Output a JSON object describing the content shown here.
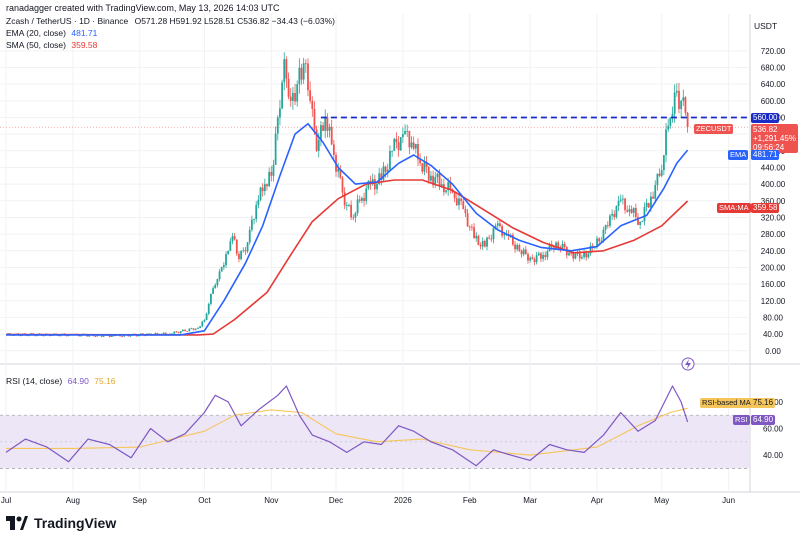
{
  "header": {
    "credit": "ranadagger created with TradingView.com, May 13, 2026 14:03 UTC",
    "currency": "USDT"
  },
  "legend": {
    "symbol": "Zcash / TetherUS · 1D · Binance",
    "ohlc": "O571.28 H591.92 L528.51 C536.82 −34.43 (−6.03%)",
    "ema_label": "EMA (20, close)",
    "ema_value": "481.71",
    "sma_label": "SMA (50, close)",
    "sma_value": "359.58",
    "rsi_label": "RSI (14, close)",
    "rsi_value": "64.90",
    "rsi_ma_value": "75.16"
  },
  "tags": {
    "resistance": "560.00",
    "symbol": "ZECUSDT",
    "price": "536.82",
    "change": "+1,291.45%",
    "countdown": "09:56:24",
    "ema_name": "EMA",
    "ema": "481.71",
    "sma_name": "SMA:MA",
    "sma": "359.58",
    "rsi_ma_name": "RSI-based MA",
    "rsi_ma": "75.16",
    "rsi_name": "RSI",
    "rsi": "64.90"
  },
  "brand": {
    "name": "TradingView"
  },
  "colors": {
    "up": "#26a69a",
    "down": "#ef5350",
    "ema": "#2962ff",
    "sma": "#e53935",
    "resistance": "#1a2cc4",
    "rsi": "#7e57c2",
    "rsi_ma": "#f6c55a",
    "rsi_band": "#ece6f7"
  },
  "chart_data": [
    {
      "type": "candlestick",
      "title": "Zcash / TetherUS · 1D · Binance",
      "x_ticks": [
        "Jul",
        "Aug",
        "Sep",
        "Oct",
        "Nov",
        "Dec",
        "2026",
        "Feb",
        "Mar",
        "Apr",
        "May",
        "Jun"
      ],
      "y_ticks": [
        0,
        40,
        80,
        120,
        160,
        200,
        240,
        280,
        320,
        360,
        400,
        440,
        480,
        520,
        560,
        600,
        640,
        680,
        720
      ],
      "ylim": [
        -15,
        770
      ],
      "grid": true,
      "resistance_level": 560,
      "close_series": [
        {
          "date": "2025-07-01",
          "close": 39
        },
        {
          "date": "2025-08-01",
          "close": 38
        },
        {
          "date": "2025-08-20",
          "close": 36
        },
        {
          "date": "2025-09-15",
          "close": 41
        },
        {
          "date": "2025-09-28",
          "close": 55
        },
        {
          "date": "2025-10-01",
          "close": 74
        },
        {
          "date": "2025-10-05",
          "close": 150
        },
        {
          "date": "2025-10-08",
          "close": 190
        },
        {
          "date": "2025-10-12",
          "close": 240
        },
        {
          "date": "2025-10-14",
          "close": 275
        },
        {
          "date": "2025-10-17",
          "close": 220
        },
        {
          "date": "2025-10-21",
          "close": 260
        },
        {
          "date": "2025-10-25",
          "close": 350
        },
        {
          "date": "2025-10-29",
          "close": 400
        },
        {
          "date": "2025-11-01",
          "close": 420
        },
        {
          "date": "2025-11-04",
          "close": 560
        },
        {
          "date": "2025-11-07",
          "close": 700
        },
        {
          "date": "2025-11-10",
          "close": 600
        },
        {
          "date": "2025-11-13",
          "close": 640
        },
        {
          "date": "2025-11-16",
          "close": 690
        },
        {
          "date": "2025-11-19",
          "close": 600
        },
        {
          "date": "2025-11-22",
          "close": 480
        },
        {
          "date": "2025-11-26",
          "close": 560
        },
        {
          "date": "2025-11-30",
          "close": 470
        },
        {
          "date": "2025-12-04",
          "close": 380
        },
        {
          "date": "2025-12-08",
          "close": 320
        },
        {
          "date": "2025-12-12",
          "close": 360
        },
        {
          "date": "2025-12-17",
          "close": 400
        },
        {
          "date": "2025-12-22",
          "close": 410
        },
        {
          "date": "2025-12-27",
          "close": 480
        },
        {
          "date": "2026-01-01",
          "close": 520
        },
        {
          "date": "2026-01-05",
          "close": 500
        },
        {
          "date": "2026-01-09",
          "close": 450
        },
        {
          "date": "2026-01-14",
          "close": 420
        },
        {
          "date": "2026-01-19",
          "close": 400
        },
        {
          "date": "2026-01-24",
          "close": 380
        },
        {
          "date": "2026-01-29",
          "close": 340
        },
        {
          "date": "2026-02-03",
          "close": 270
        },
        {
          "date": "2026-02-08",
          "close": 250
        },
        {
          "date": "2026-02-13",
          "close": 300
        },
        {
          "date": "2026-02-18",
          "close": 280
        },
        {
          "date": "2026-02-24",
          "close": 240
        },
        {
          "date": "2026-03-02",
          "close": 220
        },
        {
          "date": "2026-03-07",
          "close": 230
        },
        {
          "date": "2026-03-13",
          "close": 260
        },
        {
          "date": "2026-03-19",
          "close": 235
        },
        {
          "date": "2026-03-25",
          "close": 225
        },
        {
          "date": "2026-03-31",
          "close": 250
        },
        {
          "date": "2026-04-06",
          "close": 300
        },
        {
          "date": "2026-04-11",
          "close": 360
        },
        {
          "date": "2026-04-16",
          "close": 340
        },
        {
          "date": "2026-04-21",
          "close": 310
        },
        {
          "date": "2026-04-26",
          "close": 370
        },
        {
          "date": "2026-04-30",
          "close": 420
        },
        {
          "date": "2026-05-04",
          "close": 540
        },
        {
          "date": "2026-05-07",
          "close": 620
        },
        {
          "date": "2026-05-10",
          "close": 600
        },
        {
          "date": "2026-05-12",
          "close": 571
        },
        {
          "date": "2026-05-13",
          "close": 536.82
        }
      ],
      "series": [
        {
          "name": "EMA (20, close)",
          "last": 481.71,
          "points": [
            {
              "date": "2025-07-01",
              "value": 38
            },
            {
              "date": "2025-09-20",
              "value": 38
            },
            {
              "date": "2025-10-01",
              "value": 48
            },
            {
              "date": "2025-10-10",
              "value": 120
            },
            {
              "date": "2025-10-20",
              "value": 210
            },
            {
              "date": "2025-10-28",
              "value": 300
            },
            {
              "date": "2025-11-05",
              "value": 420
            },
            {
              "date": "2025-11-12",
              "value": 520
            },
            {
              "date": "2025-11-18",
              "value": 545
            },
            {
              "date": "2025-11-25",
              "value": 500
            },
            {
              "date": "2025-12-02",
              "value": 440
            },
            {
              "date": "2025-12-10",
              "value": 400
            },
            {
              "date": "2025-12-20",
              "value": 405
            },
            {
              "date": "2025-12-30",
              "value": 450
            },
            {
              "date": "2026-01-06",
              "value": 470
            },
            {
              "date": "2026-01-14",
              "value": 445
            },
            {
              "date": "2026-01-24",
              "value": 400
            },
            {
              "date": "2026-02-04",
              "value": 330
            },
            {
              "date": "2026-02-14",
              "value": 290
            },
            {
              "date": "2026-02-24",
              "value": 265
            },
            {
              "date": "2026-03-06",
              "value": 248
            },
            {
              "date": "2026-03-20",
              "value": 240
            },
            {
              "date": "2026-04-01",
              "value": 250
            },
            {
              "date": "2026-04-12",
              "value": 300
            },
            {
              "date": "2026-04-24",
              "value": 325
            },
            {
              "date": "2026-05-02",
              "value": 390
            },
            {
              "date": "2026-05-08",
              "value": 450
            },
            {
              "date": "2026-05-13",
              "value": 481.71
            }
          ]
        },
        {
          "name": "SMA (50, close)",
          "last": 359.58,
          "points": [
            {
              "date": "2025-07-01",
              "value": 39
            },
            {
              "date": "2025-09-28",
              "value": 38
            },
            {
              "date": "2025-10-05",
              "value": 40
            },
            {
              "date": "2025-10-15",
              "value": 75
            },
            {
              "date": "2025-10-30",
              "value": 140
            },
            {
              "date": "2025-11-10",
              "value": 230
            },
            {
              "date": "2025-11-20",
              "value": 310
            },
            {
              "date": "2025-12-02",
              "value": 365
            },
            {
              "date": "2025-12-15",
              "value": 400
            },
            {
              "date": "2025-12-28",
              "value": 410
            },
            {
              "date": "2026-01-10",
              "value": 410
            },
            {
              "date": "2026-01-24",
              "value": 385
            },
            {
              "date": "2026-02-07",
              "value": 340
            },
            {
              "date": "2026-02-21",
              "value": 295
            },
            {
              "date": "2026-03-07",
              "value": 260
            },
            {
              "date": "2026-03-21",
              "value": 235
            },
            {
              "date": "2026-04-04",
              "value": 240
            },
            {
              "date": "2026-04-18",
              "value": 265
            },
            {
              "date": "2026-05-01",
              "value": 300
            },
            {
              "date": "2026-05-13",
              "value": 359.58
            }
          ]
        }
      ]
    },
    {
      "type": "line",
      "title": "RSI (14, close)",
      "y_ticks": [
        40,
        60,
        80
      ],
      "ylim": [
        16,
        104
      ],
      "band": [
        30,
        70
      ],
      "series": [
        {
          "name": "RSI (14, close)",
          "last": 64.9,
          "points": [
            {
              "date": "2025-07-01",
              "value": 42
            },
            {
              "date": "2025-07-10",
              "value": 52
            },
            {
              "date": "2025-07-20",
              "value": 46
            },
            {
              "date": "2025-07-30",
              "value": 35
            },
            {
              "date": "2025-08-08",
              "value": 52
            },
            {
              "date": "2025-08-18",
              "value": 48
            },
            {
              "date": "2025-08-28",
              "value": 38
            },
            {
              "date": "2025-09-06",
              "value": 60
            },
            {
              "date": "2025-09-14",
              "value": 50
            },
            {
              "date": "2025-09-22",
              "value": 56
            },
            {
              "date": "2025-10-01",
              "value": 72
            },
            {
              "date": "2025-10-06",
              "value": 85
            },
            {
              "date": "2025-10-12",
              "value": 80
            },
            {
              "date": "2025-10-18",
              "value": 62
            },
            {
              "date": "2025-10-26",
              "value": 74
            },
            {
              "date": "2025-11-04",
              "value": 85
            },
            {
              "date": "2025-11-08",
              "value": 92
            },
            {
              "date": "2025-11-14",
              "value": 70
            },
            {
              "date": "2025-11-20",
              "value": 55
            },
            {
              "date": "2025-11-28",
              "value": 50
            },
            {
              "date": "2025-12-06",
              "value": 42
            },
            {
              "date": "2025-12-14",
              "value": 50
            },
            {
              "date": "2025-12-22",
              "value": 48
            },
            {
              "date": "2025-12-30",
              "value": 62
            },
            {
              "date": "2026-01-06",
              "value": 58
            },
            {
              "date": "2026-01-14",
              "value": 50
            },
            {
              "date": "2026-01-24",
              "value": 44
            },
            {
              "date": "2026-02-04",
              "value": 32
            },
            {
              "date": "2026-02-12",
              "value": 44
            },
            {
              "date": "2026-02-20",
              "value": 40
            },
            {
              "date": "2026-03-01",
              "value": 36
            },
            {
              "date": "2026-03-10",
              "value": 48
            },
            {
              "date": "2026-03-18",
              "value": 44
            },
            {
              "date": "2026-03-26",
              "value": 42
            },
            {
              "date": "2026-04-04",
              "value": 55
            },
            {
              "date": "2026-04-12",
              "value": 72
            },
            {
              "date": "2026-04-20",
              "value": 58
            },
            {
              "date": "2026-04-28",
              "value": 66
            },
            {
              "date": "2026-05-06",
              "value": 92
            },
            {
              "date": "2026-05-10",
              "value": 80
            },
            {
              "date": "2026-05-13",
              "value": 64.9
            }
          ]
        },
        {
          "name": "RSI-based MA",
          "last": 75.16,
          "points": [
            {
              "date": "2025-07-01",
              "value": 45
            },
            {
              "date": "2025-08-01",
              "value": 45
            },
            {
              "date": "2025-09-01",
              "value": 46
            },
            {
              "date": "2025-10-01",
              "value": 58
            },
            {
              "date": "2025-10-15",
              "value": 70
            },
            {
              "date": "2025-11-01",
              "value": 74
            },
            {
              "date": "2025-11-15",
              "value": 72
            },
            {
              "date": "2025-12-01",
              "value": 56
            },
            {
              "date": "2025-12-20",
              "value": 50
            },
            {
              "date": "2026-01-10",
              "value": 52
            },
            {
              "date": "2026-02-01",
              "value": 44
            },
            {
              "date": "2026-03-01",
              "value": 40
            },
            {
              "date": "2026-04-01",
              "value": 46
            },
            {
              "date": "2026-04-20",
              "value": 62
            },
            {
              "date": "2026-05-05",
              "value": 72
            },
            {
              "date": "2026-05-13",
              "value": 75.16
            }
          ]
        }
      ]
    }
  ]
}
